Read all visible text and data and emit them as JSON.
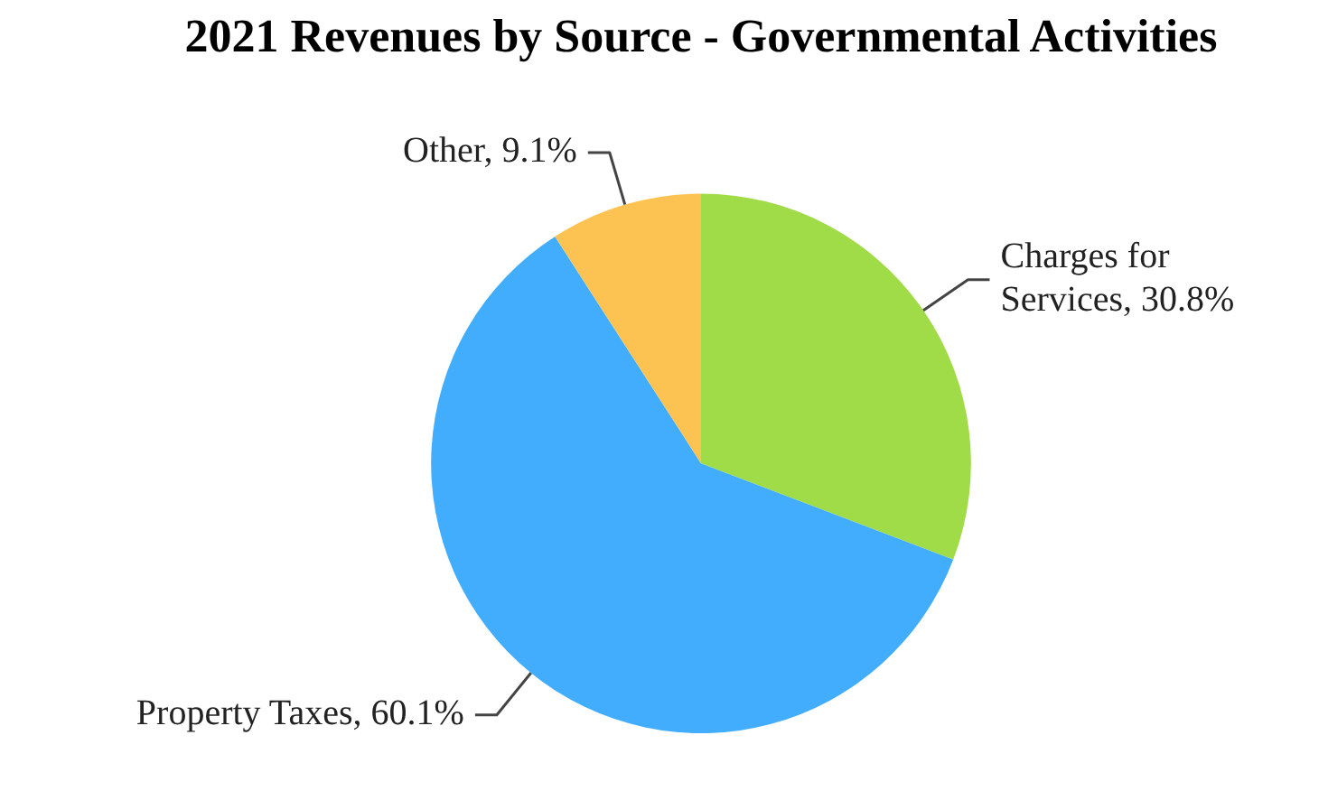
{
  "chart_data": {
    "type": "pie",
    "title": "2021 Revenues by Source - Governmental Activities",
    "categories": [
      "Charges for Services",
      "Property Taxes",
      "Other"
    ],
    "values": [
      30.8,
      60.1,
      9.1
    ],
    "value_labels": [
      "30.8%",
      "60.1%",
      "9.1%"
    ],
    "colors": [
      "#a0dc48",
      "#42adfd",
      "#fcc352"
    ],
    "legend": false
  }
}
